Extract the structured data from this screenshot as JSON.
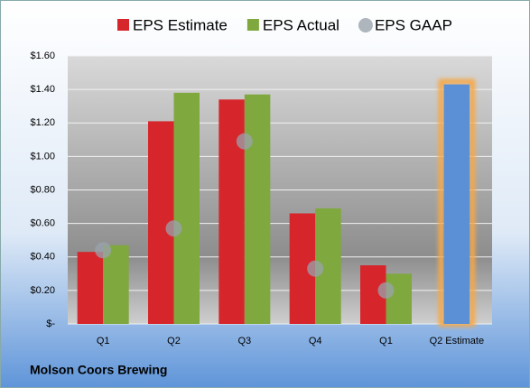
{
  "chart_data": {
    "type": "bar",
    "title": "Molson Coors Brewing",
    "categories": [
      "Q1",
      "Q2",
      "Q3",
      "Q4",
      "Q1",
      "Q2 Estimate"
    ],
    "series": [
      {
        "name": "EPS Estimate",
        "color": "#d7262b",
        "kind": "bar",
        "values": [
          0.43,
          1.21,
          1.34,
          0.66,
          0.35,
          null
        ]
      },
      {
        "name": "EPS Actual",
        "color": "#7fa83e",
        "kind": "bar",
        "values": [
          0.47,
          1.38,
          1.37,
          0.69,
          0.3,
          null
        ]
      },
      {
        "color": "#5b8fd6",
        "kind": "bar",
        "highlight": "#f5a94a",
        "values": [
          null,
          null,
          null,
          null,
          null,
          1.43
        ]
      },
      {
        "name": "EPS GAAP",
        "color": "#9aa3ad",
        "kind": "scatter",
        "values": [
          0.44,
          0.57,
          1.09,
          0.33,
          0.2,
          null
        ]
      }
    ],
    "ylim": [
      0,
      1.6
    ],
    "yticks": [
      {
        "value": 0,
        "label": "$-"
      },
      {
        "value": 0.2,
        "label": "$0.20"
      },
      {
        "value": 0.4,
        "label": "$0.40"
      },
      {
        "value": 0.6,
        "label": "$0.60"
      },
      {
        "value": 0.8,
        "label": "$0.80"
      },
      {
        "value": 1.0,
        "label": "$1.00"
      },
      {
        "value": 1.2,
        "label": "$1.20"
      },
      {
        "value": 1.4,
        "label": "$1.40"
      },
      {
        "value": 1.6,
        "label": "$1.60"
      }
    ],
    "grid": true
  }
}
